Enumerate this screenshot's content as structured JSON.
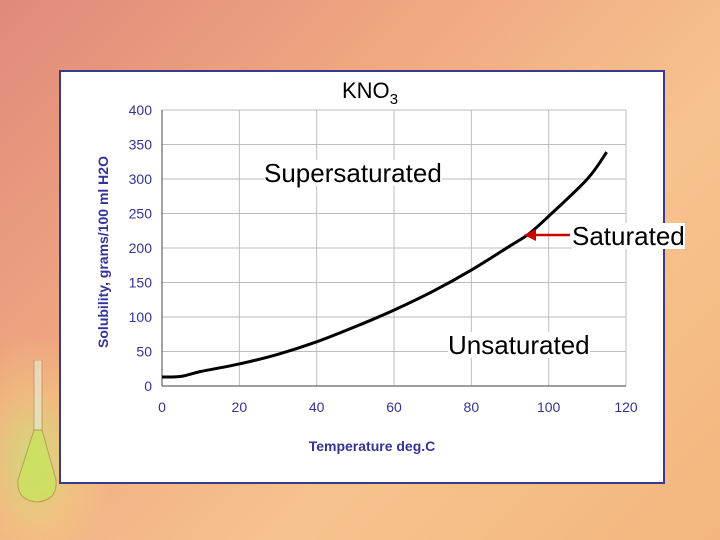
{
  "chart_data": {
    "type": "line",
    "title": "KNO",
    "title_subscript": "3",
    "xlabel": "Temperature  deg.C",
    "ylabel": "Solubility, grams/100 ml H2O",
    "xlim": [
      0,
      120
    ],
    "ylim": [
      0,
      400
    ],
    "x_ticks": [
      "0",
      "20",
      "40",
      "60",
      "80",
      "100",
      "120"
    ],
    "y_ticks": [
      "0",
      "50",
      "100",
      "150",
      "200",
      "250",
      "300",
      "350",
      "400"
    ],
    "grid": true,
    "series": [
      {
        "x": [
          0,
          5,
          10,
          20,
          30,
          40,
          50,
          60,
          70,
          80,
          90,
          95,
          100,
          110,
          115
        ],
        "y": [
          13,
          14,
          21,
          32,
          46,
          64,
          86,
          110,
          137,
          168,
          203,
          221,
          246,
          300,
          339
        ]
      }
    ],
    "annotations": [
      {
        "text": "Supersaturated"
      },
      {
        "text": "Saturated"
      },
      {
        "text": "Unsaturated"
      }
    ],
    "colors": {
      "axis_text": "#333399",
      "line": "#000000",
      "arrow": "#cc0000",
      "frame": "#3a3a8a"
    }
  }
}
